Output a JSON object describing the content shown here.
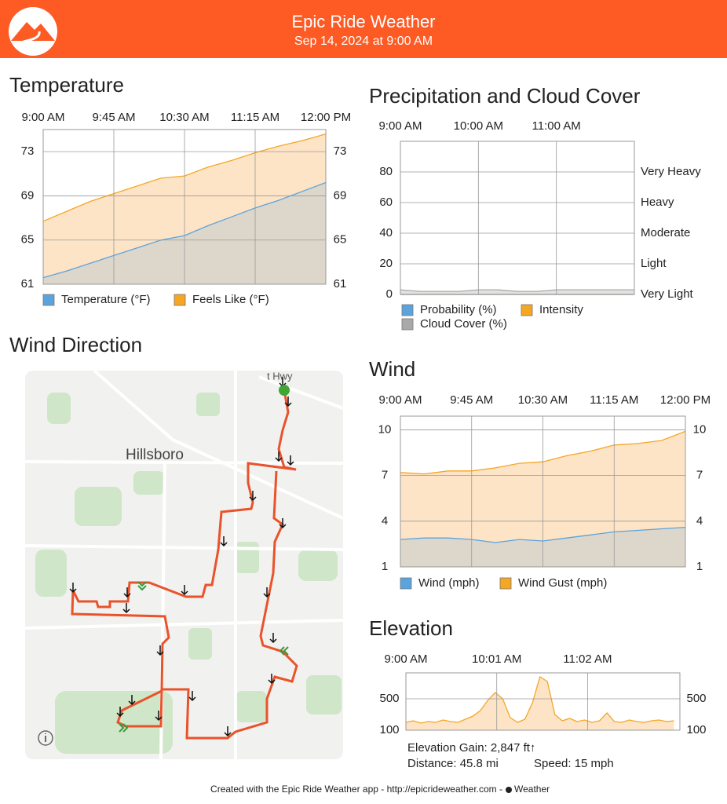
{
  "header": {
    "title": "Epic Ride Weather",
    "subtitle": "Sep 14, 2024 at 9:00 AM"
  },
  "chart_data": [
    {
      "type": "area",
      "title": "Temperature",
      "x": [
        540,
        555,
        570,
        585,
        600,
        615,
        630,
        645,
        660,
        675,
        690,
        705,
        720
      ],
      "series": [
        {
          "name": "Temperature (°F)",
          "color": "#5ba3dc",
          "values": [
            61.6,
            62.2,
            62.9,
            63.6,
            64.3,
            65.0,
            65.4,
            66.3,
            67.1,
            67.9,
            68.6,
            69.4,
            70.2
          ]
        },
        {
          "name": "Feels Like (°F)",
          "color": "#f5a623",
          "values": [
            66.7,
            67.6,
            68.5,
            69.2,
            69.9,
            70.6,
            70.8,
            71.6,
            72.2,
            72.9,
            73.5,
            74.0,
            74.6
          ]
        }
      ],
      "xlim": [
        540,
        720
      ],
      "xticks": [
        {
          "value": 540,
          "label": "9:00 AM"
        },
        {
          "value": 585,
          "label": "9:45 AM"
        },
        {
          "value": 630,
          "label": "10:30 AM"
        },
        {
          "value": 675,
          "label": "11:15 AM"
        },
        {
          "value": 720,
          "label": "12:00 PM"
        }
      ],
      "ylim": [
        61,
        75
      ],
      "yticks": [
        61,
        65,
        69,
        73
      ],
      "y2lim": [
        61,
        75
      ],
      "y2ticks": [
        61,
        65,
        69,
        73
      ],
      "grid": true
    },
    {
      "type": "area",
      "title": "Precipitation and Cloud Cover",
      "x": [
        540,
        555,
        570,
        585,
        600,
        615,
        630,
        645,
        660,
        675,
        690,
        705,
        720
      ],
      "series": [
        {
          "name": "Probability (%)",
          "color": "#5ba3dc",
          "values": [
            0,
            0,
            0,
            0,
            0,
            0,
            0,
            0,
            0,
            0,
            0,
            0,
            0
          ]
        },
        {
          "name": "Intensity",
          "color": "#f5a623",
          "values": [
            0,
            0,
            0,
            0,
            0,
            0,
            0,
            0,
            0,
            0,
            0,
            0,
            0
          ]
        },
        {
          "name": "Cloud Cover (%)",
          "color": "#a9a9a9",
          "values": [
            3,
            2,
            2,
            2,
            3,
            3,
            2,
            2,
            3,
            3,
            3,
            3,
            3
          ]
        }
      ],
      "xlim": [
        540,
        720
      ],
      "xticks": [
        {
          "value": 540,
          "label": "9:00 AM"
        },
        {
          "value": 600,
          "label": "10:00 AM"
        },
        {
          "value": 660,
          "label": "11:00 AM"
        }
      ],
      "ylim": [
        0,
        100
      ],
      "yticks": [
        0,
        20,
        40,
        60,
        80
      ],
      "y2lim": [
        0,
        100
      ],
      "y2ticks": [
        {
          "value": 0,
          "label": "Very Light"
        },
        {
          "value": 20,
          "label": "Light"
        },
        {
          "value": 40,
          "label": "Moderate"
        },
        {
          "value": 60,
          "label": "Heavy"
        },
        {
          "value": 80,
          "label": "Very Heavy"
        }
      ],
      "grid": true
    },
    {
      "type": "area",
      "title": "Wind",
      "x": [
        540,
        555,
        570,
        585,
        600,
        615,
        630,
        645,
        660,
        675,
        690,
        705,
        720
      ],
      "series": [
        {
          "name": "Wind (mph)",
          "color": "#5ba3dc",
          "values": [
            2.8,
            2.9,
            2.9,
            2.8,
            2.6,
            2.8,
            2.7,
            2.9,
            3.1,
            3.3,
            3.4,
            3.5,
            3.6
          ]
        },
        {
          "name": "Wind Gust (mph)",
          "color": "#f5a623",
          "values": [
            7.2,
            7.1,
            7.3,
            7.3,
            7.5,
            7.8,
            7.9,
            8.3,
            8.6,
            9.0,
            9.1,
            9.3,
            9.9
          ]
        }
      ],
      "xlim": [
        540,
        720
      ],
      "xticks": [
        {
          "value": 540,
          "label": "9:00 AM"
        },
        {
          "value": 585,
          "label": "9:45 AM"
        },
        {
          "value": 630,
          "label": "10:30 AM"
        },
        {
          "value": 675,
          "label": "11:15 AM"
        },
        {
          "value": 720,
          "label": "12:00 PM"
        }
      ],
      "ylim": [
        1,
        10.9
      ],
      "yticks": [
        1,
        4,
        7,
        10
      ],
      "y2lim": [
        1,
        10.9
      ],
      "y2ticks": [
        1,
        4,
        7,
        10
      ],
      "grid": true
    },
    {
      "type": "area",
      "title": "Elevation",
      "x": [
        540,
        545,
        550,
        555,
        560,
        565,
        570,
        575,
        580,
        585,
        590,
        595,
        600,
        605,
        610,
        615,
        620,
        625,
        630,
        635,
        640,
        645,
        650,
        655,
        660,
        665,
        670,
        675,
        680,
        685,
        690,
        695,
        700,
        705,
        710,
        715,
        720
      ],
      "series": [
        {
          "color": "#f5a623",
          "values": [
            200,
            220,
            190,
            210,
            200,
            230,
            210,
            200,
            240,
            280,
            350,
            480,
            580,
            500,
            260,
            200,
            240,
            450,
            780,
            720,
            300,
            220,
            250,
            210,
            230,
            200,
            220,
            320,
            210,
            200,
            230,
            210,
            200,
            220,
            230,
            210,
            220
          ]
        }
      ],
      "xlim": [
        540,
        724
      ],
      "xticks": [
        {
          "value": 540,
          "label": "9:00 AM"
        },
        {
          "value": 601,
          "label": "10:01 AM"
        },
        {
          "value": 662,
          "label": "11:02 AM"
        }
      ],
      "ylim": [
        100,
        830
      ],
      "yticks": [
        100,
        500
      ],
      "y2lim": [
        100,
        830
      ],
      "y2ticks": [
        100,
        500
      ],
      "grid": true
    }
  ],
  "map": {
    "title": "Wind Direction",
    "place": "Hillsboro",
    "road": "t Hwy"
  },
  "stats": {
    "gain": "Elevation Gain: 2,847 ft↑",
    "distance": "Distance: 45.8 mi",
    "speed": "Speed: 15 mph"
  },
  "footer": {
    "text": "Created with the Epic Ride Weather app - http://epicrideweather.com -",
    "brand": "Weather"
  }
}
